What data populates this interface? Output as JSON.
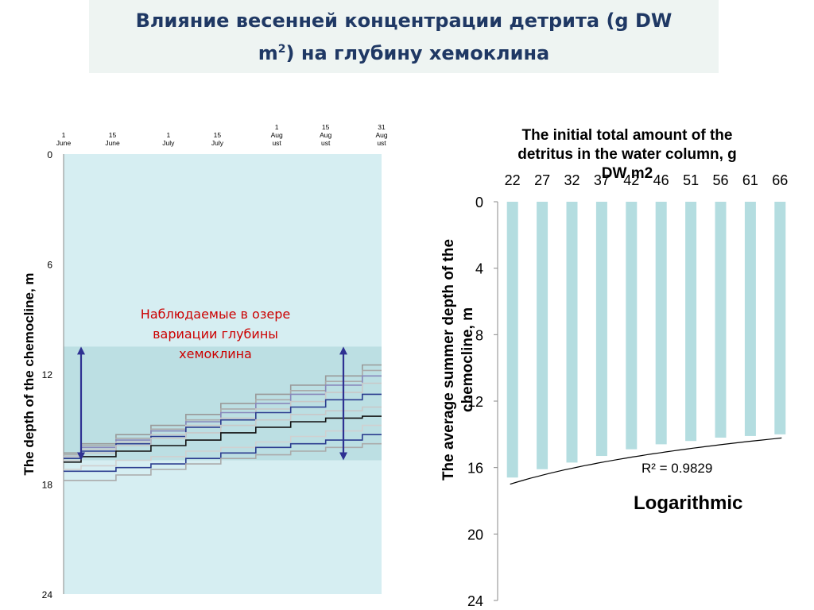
{
  "slide": {
    "title_line1": "Влияние весенней концентрации детрита (g DW",
    "title_line2_pre": "m",
    "title_line2_sup": "2",
    "title_line2_post": ") на глубину хемоклина"
  },
  "annotation": {
    "line1": "Наблюдаемые в озере",
    "line2": "вариации глубины",
    "line3": "хемоклина"
  },
  "colors": {
    "title": "#1f3864",
    "annotation": "#cc0000",
    "left_plot_bg": "#d6eef2",
    "observed_band": "#bcdfe3",
    "bars": "#b4dde0",
    "arrows": "#2e3192"
  },
  "chart_data": [
    {
      "type": "line",
      "ylabel": "The depth of the chemocline, m",
      "xticks": [
        {
          "l1": "1",
          "l2": "June",
          "l3": ""
        },
        {
          "l1": "15",
          "l2": "June",
          "l3": ""
        },
        {
          "l1": "1",
          "l2": "July",
          "l3": ""
        },
        {
          "l1": "15",
          "l2": "July",
          "l3": ""
        },
        {
          "l1": "1",
          "l2": "Aug",
          "l3": "ust"
        },
        {
          "l1": "15",
          "l2": "Aug",
          "l3": "ust"
        },
        {
          "l1": "31",
          "l2": "Aug",
          "l3": "ust"
        }
      ],
      "xtick_days": [
        0,
        14,
        30,
        44,
        61,
        75,
        91
      ],
      "yticks": [
        "0",
        "6",
        "12",
        "18",
        "24"
      ],
      "ylim": [
        0,
        24
      ],
      "y_inverted": true,
      "observed_range": [
        10.5,
        16.7
      ],
      "series": [
        {
          "color": "#999999",
          "x": [
            0,
            10,
            20,
            30,
            40,
            50,
            60,
            70,
            80,
            91
          ],
          "y": [
            16.3,
            15.8,
            15.3,
            14.8,
            14.2,
            13.6,
            13.1,
            12.6,
            12.1,
            11.5
          ]
        },
        {
          "color": "#aaaaaa",
          "x": [
            0,
            10,
            20,
            30,
            40,
            50,
            60,
            70,
            80,
            91
          ],
          "y": [
            16.4,
            15.9,
            15.5,
            15.0,
            14.5,
            13.9,
            13.4,
            12.9,
            12.4,
            11.8
          ]
        },
        {
          "color": "#8888bb",
          "x": [
            0,
            10,
            20,
            30,
            40,
            50,
            60,
            70,
            80,
            91
          ],
          "y": [
            16.5,
            16.0,
            15.6,
            15.1,
            14.6,
            14.1,
            13.6,
            13.1,
            12.6,
            12.1
          ]
        },
        {
          "color": "#c8c8c8",
          "x": [
            0,
            10,
            20,
            30,
            40,
            50,
            60,
            70,
            80,
            91
          ],
          "y": [
            16.5,
            16.1,
            15.7,
            15.3,
            14.8,
            14.4,
            13.9,
            13.5,
            13.0,
            12.5
          ]
        },
        {
          "color": "#2b3c8f",
          "x": [
            0,
            10,
            20,
            30,
            40,
            50,
            60,
            70,
            80,
            91
          ],
          "y": [
            16.6,
            16.2,
            15.8,
            15.4,
            14.9,
            14.5,
            14.1,
            13.8,
            13.4,
            13.1
          ]
        },
        {
          "color": "#c8c8c8",
          "x": [
            0,
            10,
            20,
            30,
            40,
            50,
            60,
            70,
            80,
            91
          ],
          "y": [
            16.7,
            16.3,
            15.9,
            15.5,
            15.2,
            14.8,
            14.5,
            14.2,
            14.0,
            13.8
          ]
        },
        {
          "color": "#111111",
          "x": [
            0,
            10,
            20,
            30,
            40,
            50,
            60,
            70,
            80,
            91
          ],
          "y": [
            16.8,
            16.5,
            16.2,
            15.9,
            15.6,
            15.2,
            14.9,
            14.6,
            14.4,
            14.3
          ]
        },
        {
          "color": "#d0d0d0",
          "x": [
            0,
            10,
            20,
            30,
            40,
            50,
            60,
            70,
            80,
            91
          ],
          "y": [
            17.2,
            17.0,
            16.7,
            16.5,
            16.2,
            16.0,
            15.7,
            15.4,
            15.1,
            14.8
          ]
        },
        {
          "color": "#2b3c8f",
          "x": [
            0,
            10,
            20,
            30,
            40,
            50,
            60,
            70,
            80,
            91
          ],
          "y": [
            17.3,
            17.3,
            17.1,
            16.9,
            16.6,
            16.3,
            16.0,
            15.8,
            15.6,
            15.3
          ]
        },
        {
          "color": "#aaaaaa",
          "x": [
            0,
            10,
            20,
            30,
            40,
            50,
            60,
            70,
            80,
            91
          ],
          "y": [
            17.8,
            17.8,
            17.5,
            17.2,
            16.9,
            16.6,
            16.4,
            16.2,
            16.0,
            15.8
          ]
        }
      ]
    },
    {
      "type": "bar",
      "title_line1": "The initial total amount of the",
      "title_line2": "detritus in the water column, g",
      "title_line3": "DW m2",
      "ylabel_line1": "The average summer depth of the",
      "ylabel_line2": "chemocline, m",
      "categories": [
        "22",
        "27",
        "32",
        "37",
        "42",
        "46",
        "51",
        "56",
        "61",
        "66"
      ],
      "values": [
        16.6,
        16.1,
        15.7,
        15.3,
        14.9,
        14.6,
        14.4,
        14.2,
        14.1,
        14.0
      ],
      "yticks": [
        "0",
        "4",
        "8",
        "12",
        "16",
        "20",
        "24"
      ],
      "ylim": [
        0,
        24
      ],
      "y_inverted": true,
      "trendline": "Logarithmic",
      "r2_label": "R² = 0.9829",
      "trend_label": "Logarithmic"
    }
  ]
}
